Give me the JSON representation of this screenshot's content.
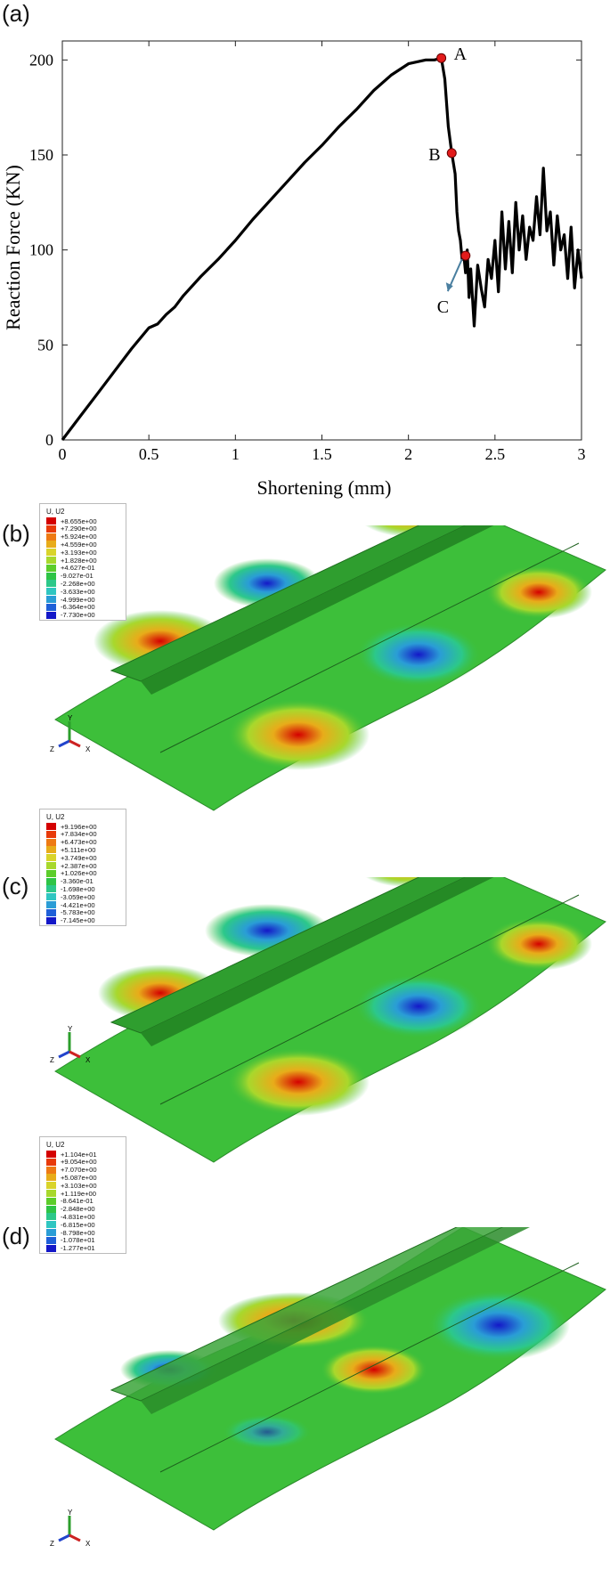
{
  "panels": {
    "a": "(a)",
    "b": "(b)",
    "c": "(c)",
    "d": "(d)"
  },
  "chart_data": {
    "type": "line",
    "xlabel": "Shortening (mm)",
    "ylabel": "Reaction Force (KN)",
    "xlim": [
      0,
      3
    ],
    "ylim": [
      0,
      210
    ],
    "xticks": [
      0,
      0.5,
      1,
      1.5,
      2,
      2.5,
      3
    ],
    "yticks": [
      0,
      50,
      100,
      150,
      200
    ],
    "x_tick_labels": [
      "0",
      "0.5",
      "1",
      "1.5",
      "2",
      "2.5",
      "3"
    ],
    "y_tick_labels": [
      "0",
      "50",
      "100",
      "150",
      "200"
    ],
    "grid": false,
    "series": [
      {
        "x": [
          0,
          0.1,
          0.2,
          0.3,
          0.4,
          0.5,
          0.55,
          0.6,
          0.65,
          0.7,
          0.8,
          0.9,
          1.0,
          1.1,
          1.2,
          1.3,
          1.4,
          1.5,
          1.6,
          1.7,
          1.8,
          1.9,
          2.0,
          2.1,
          2.15,
          2.19,
          2.21,
          2.23,
          2.25,
          2.27,
          2.28,
          2.29,
          2.3,
          2.31,
          2.32,
          2.33,
          2.34,
          2.35,
          2.36,
          2.38,
          2.4,
          2.42,
          2.44,
          2.46,
          2.48,
          2.5,
          2.52,
          2.54,
          2.56,
          2.58,
          2.6,
          2.62,
          2.64,
          2.66,
          2.68,
          2.7,
          2.72,
          2.74,
          2.76,
          2.78,
          2.8,
          2.82,
          2.84,
          2.86,
          2.88,
          2.9,
          2.92,
          2.94,
          2.96,
          2.98,
          3.0
        ],
        "y": [
          0,
          12,
          24,
          36,
          48,
          59,
          61,
          66,
          70,
          76,
          86,
          95,
          105,
          116,
          126,
          136,
          146,
          155,
          165,
          174,
          184,
          192,
          198,
          200,
          200,
          201,
          190,
          165,
          151,
          140,
          120,
          110,
          105,
          95,
          97,
          88,
          100,
          75,
          90,
          60,
          92,
          80,
          70,
          95,
          85,
          105,
          78,
          120,
          90,
          115,
          88,
          125,
          100,
          118,
          95,
          112,
          105,
          128,
          108,
          143,
          110,
          120,
          92,
          118,
          100,
          108,
          85,
          112,
          80,
          100,
          85
        ]
      }
    ],
    "points": [
      {
        "label": "A",
        "x": 2.19,
        "y": 201
      },
      {
        "label": "B",
        "x": 2.25,
        "y": 151
      },
      {
        "label": "C",
        "x": 2.33,
        "y": 97
      }
    ]
  },
  "contours": [
    {
      "title": "U, U2",
      "colors": [
        "#d40000",
        "#e83a0a",
        "#ee7a14",
        "#e8ac1a",
        "#d9d42a",
        "#a8d82c",
        "#5ccd2a",
        "#2ec446",
        "#2cc88a",
        "#2fc6c1",
        "#2a9dd6",
        "#1f60d8",
        "#1418c8"
      ],
      "values": [
        "+8.655e+00",
        "+7.290e+00",
        "+5.924e+00",
        "+4.559e+00",
        "+3.193e+00",
        "+1.828e+00",
        "+4.627e-01",
        "-9.027e-01",
        "-2.268e+00",
        "-3.633e+00",
        "-4.999e+00",
        "-6.364e+00",
        "-7.730e+00"
      ]
    },
    {
      "title": "U, U2",
      "colors": [
        "#d40000",
        "#e83a0a",
        "#ee7a14",
        "#e8ac1a",
        "#d9d42a",
        "#a8d82c",
        "#5ccd2a",
        "#2ec446",
        "#2cc88a",
        "#2fc6c1",
        "#2a9dd6",
        "#1f60d8",
        "#1418c8"
      ],
      "values": [
        "+9.196e+00",
        "+7.834e+00",
        "+6.473e+00",
        "+5.111e+00",
        "+3.749e+00",
        "+2.387e+00",
        "+1.026e+00",
        "-3.360e-01",
        "-1.698e+00",
        "-3.059e+00",
        "-4.421e+00",
        "-5.783e+00",
        "-7.145e+00"
      ]
    },
    {
      "title": "U, U2",
      "colors": [
        "#d40000",
        "#e83a0a",
        "#ee7a14",
        "#e8ac1a",
        "#d9d42a",
        "#a8d82c",
        "#5ccd2a",
        "#2ec446",
        "#2cc88a",
        "#2fc6c1",
        "#2a9dd6",
        "#1f60d8",
        "#1418c8"
      ],
      "values": [
        "+1.104e+01",
        "+9.054e+00",
        "+7.070e+00",
        "+5.087e+00",
        "+3.103e+00",
        "+1.119e+00",
        "-8.641e-01",
        "-2.848e+00",
        "-4.831e+00",
        "-6.815e+00",
        "-8.798e+00",
        "-1.078e+01",
        "-1.277e+01"
      ]
    }
  ],
  "axes_triad": {
    "y": "Y",
    "x": "X",
    "z": "Z"
  }
}
